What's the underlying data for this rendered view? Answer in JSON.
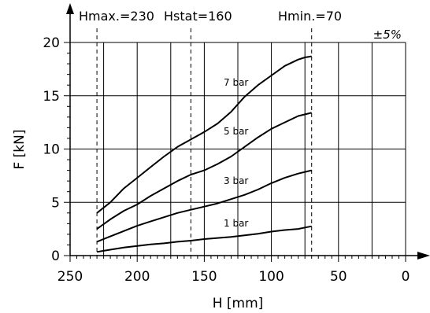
{
  "chart_data": {
    "type": "line",
    "xlabel": "H [mm]",
    "ylabel": "F [kN]",
    "xlim": [
      250,
      0
    ],
    "ylim": [
      0,
      20
    ],
    "x_ticks": [
      "250",
      "200",
      "150",
      "100",
      "50",
      "0"
    ],
    "y_ticks": [
      "0",
      "5",
      "10",
      "15",
      "20"
    ],
    "x_reversed": true,
    "grid": true,
    "reference_lines": [
      {
        "label": "Hmax.=230",
        "x": 230
      },
      {
        "label": "Hstat=160",
        "x": 160
      },
      {
        "label": "Hmin.=70",
        "x": 70
      }
    ],
    "tolerance": "±5%",
    "series": [
      {
        "name": "7 bar",
        "x": [
          230,
          220,
          210,
          200,
          190,
          180,
          170,
          160,
          150,
          140,
          130,
          120,
          110,
          100,
          90,
          80,
          75,
          70
        ],
        "y": [
          4.0,
          5.0,
          6.3,
          7.3,
          8.3,
          9.3,
          10.2,
          10.9,
          11.6,
          12.4,
          13.5,
          14.9,
          16.0,
          16.9,
          17.8,
          18.4,
          18.6,
          18.7
        ]
      },
      {
        "name": "5 bar",
        "x": [
          230,
          220,
          210,
          200,
          190,
          180,
          170,
          160,
          150,
          140,
          130,
          120,
          110,
          100,
          90,
          80,
          70
        ],
        "y": [
          2.5,
          3.4,
          4.2,
          4.8,
          5.6,
          6.3,
          7.0,
          7.6,
          8.0,
          8.6,
          9.3,
          10.2,
          11.1,
          11.9,
          12.5,
          13.1,
          13.4
        ]
      },
      {
        "name": "3 bar",
        "x": [
          230,
          220,
          210,
          200,
          190,
          180,
          170,
          160,
          150,
          140,
          130,
          120,
          110,
          100,
          90,
          80,
          70
        ],
        "y": [
          1.3,
          1.8,
          2.3,
          2.8,
          3.2,
          3.6,
          4.0,
          4.3,
          4.6,
          4.9,
          5.3,
          5.7,
          6.2,
          6.8,
          7.3,
          7.7,
          8.0
        ]
      },
      {
        "name": "1 bar",
        "x": [
          230,
          220,
          210,
          200,
          190,
          180,
          170,
          160,
          150,
          140,
          130,
          120,
          110,
          100,
          90,
          80,
          70
        ],
        "y": [
          0.35,
          0.55,
          0.75,
          0.9,
          1.05,
          1.15,
          1.3,
          1.4,
          1.55,
          1.65,
          1.75,
          1.9,
          2.05,
          2.25,
          2.4,
          2.5,
          2.75
        ]
      }
    ]
  }
}
